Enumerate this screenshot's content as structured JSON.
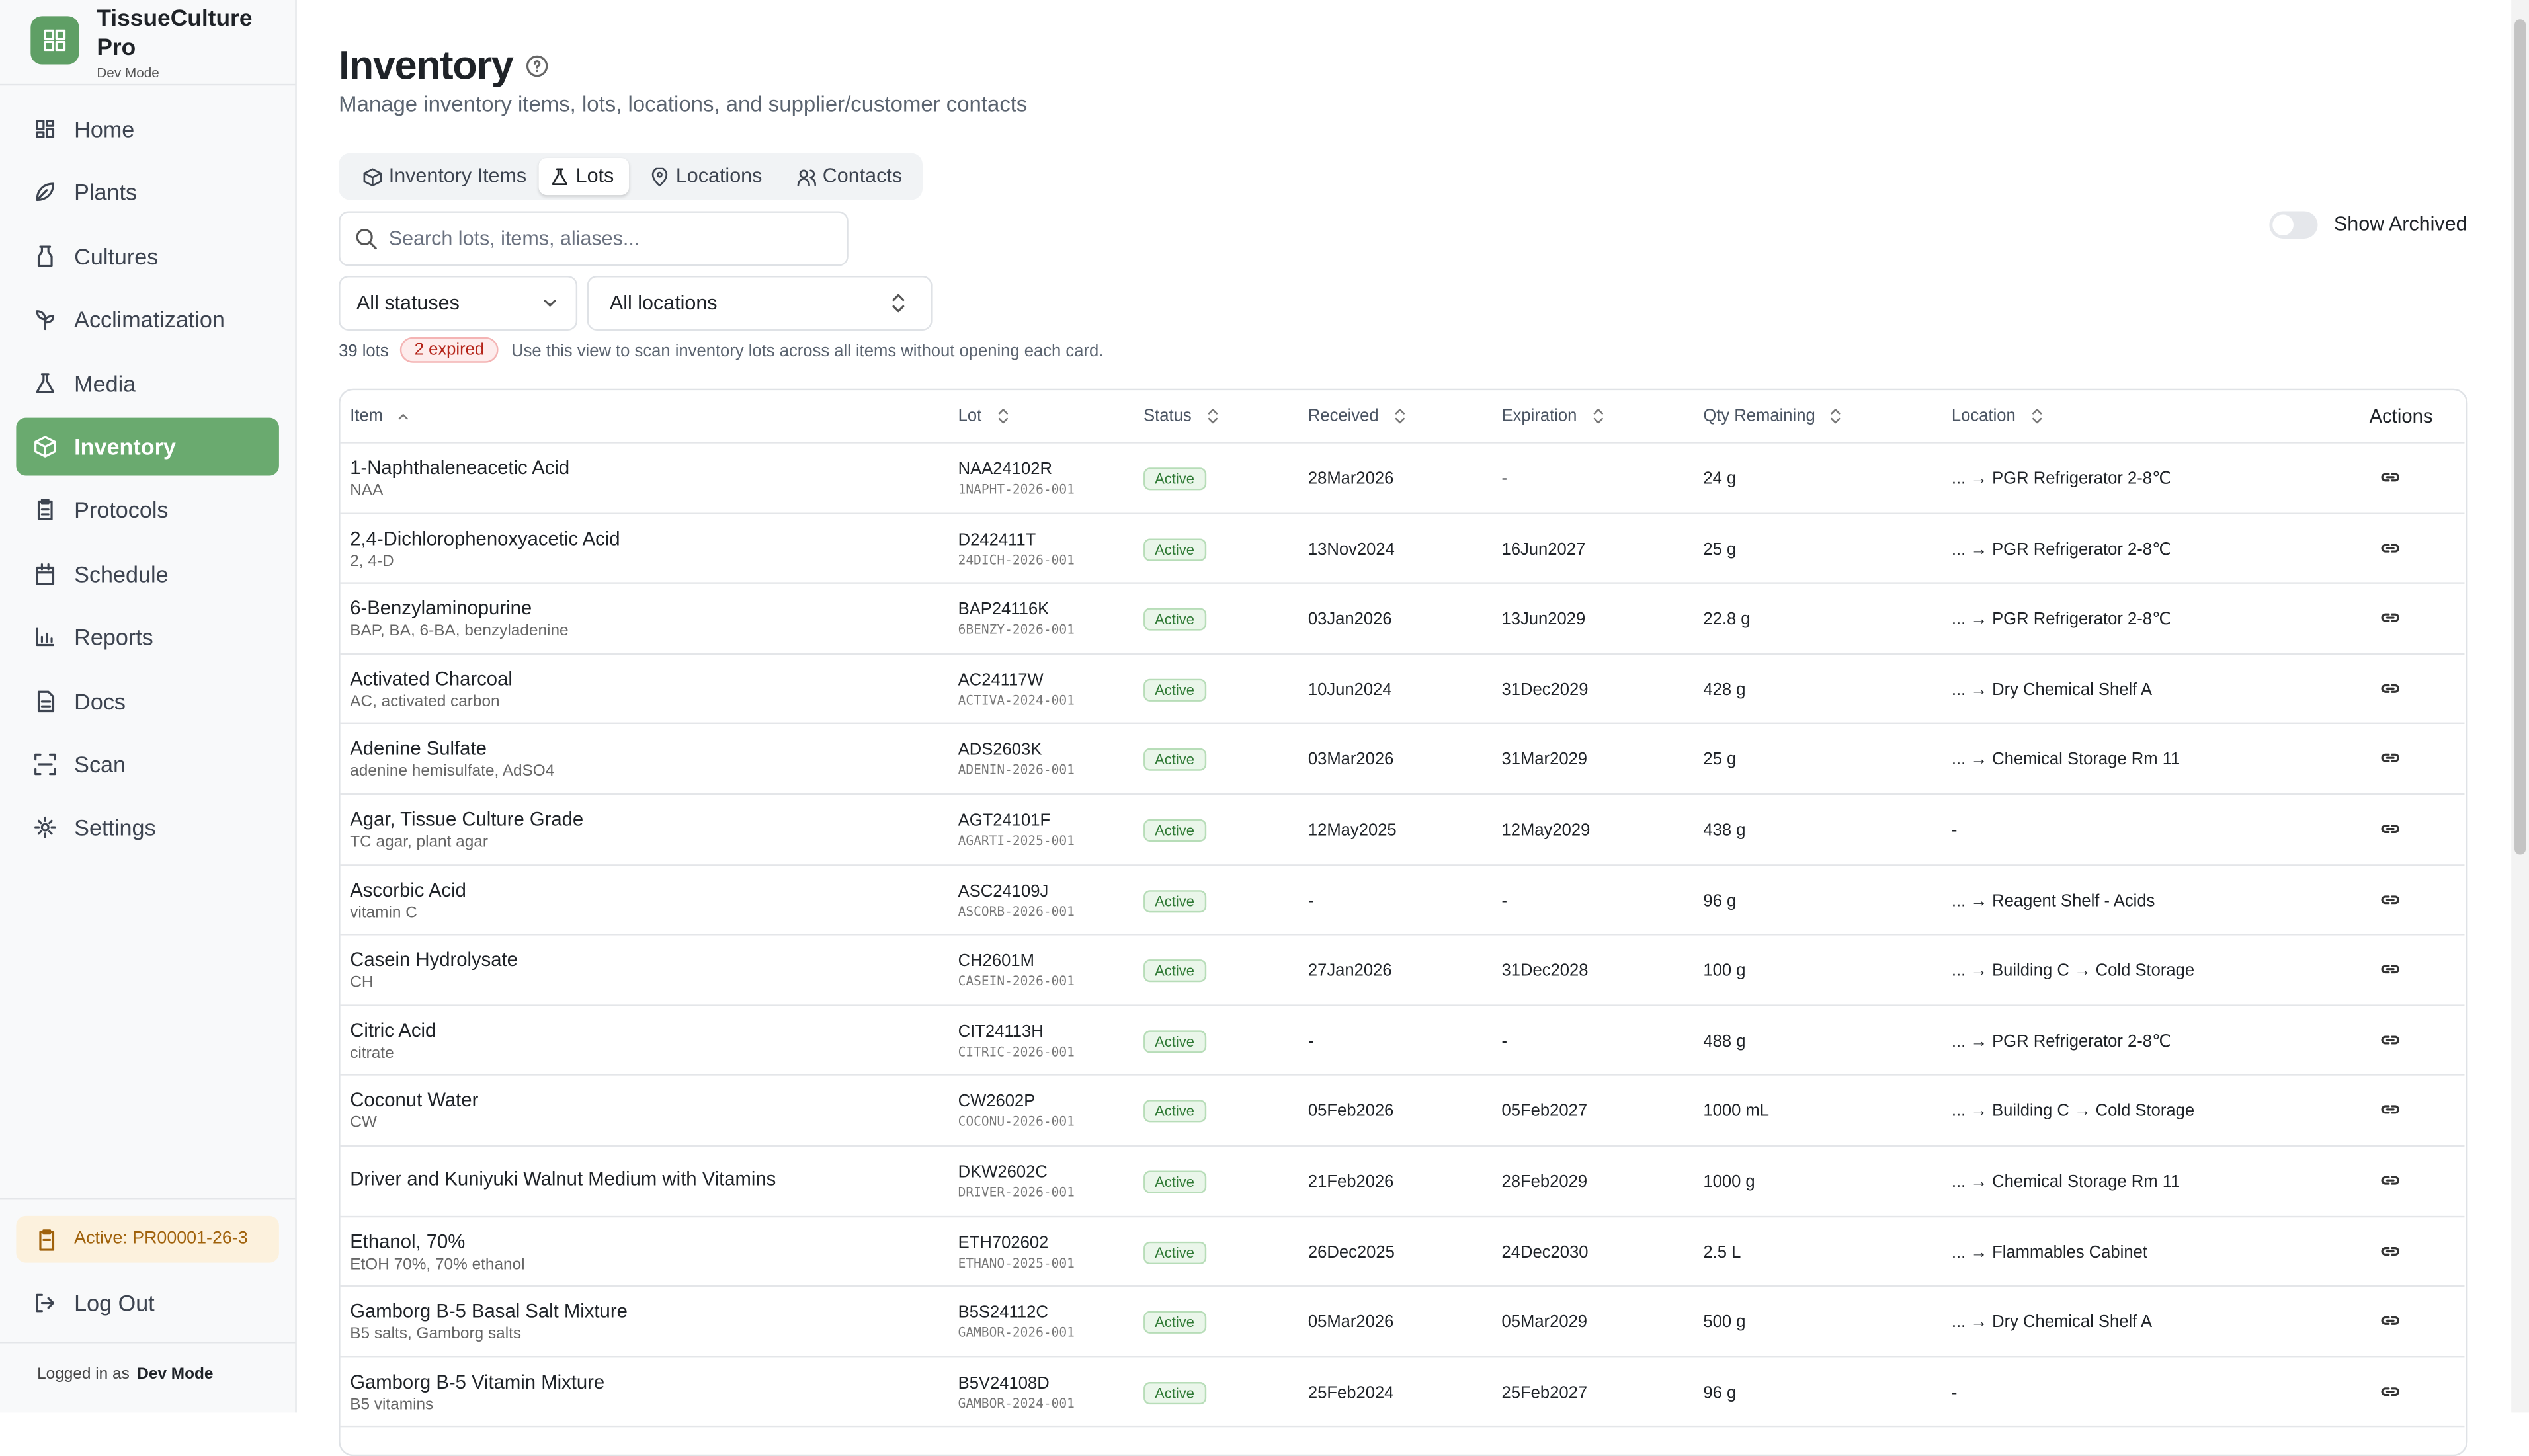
{
  "sidebar": {
    "brand": "TissueCulture Pro",
    "mode": "Dev Mode",
    "nav": [
      {
        "label": "Home"
      },
      {
        "label": "Plants"
      },
      {
        "label": "Cultures"
      },
      {
        "label": "Acclimatization"
      },
      {
        "label": "Media"
      },
      {
        "label": "Inventory",
        "active": true
      },
      {
        "label": "Protocols"
      },
      {
        "label": "Schedule"
      },
      {
        "label": "Reports"
      },
      {
        "label": "Docs"
      },
      {
        "label": "Scan"
      },
      {
        "label": "Settings"
      }
    ],
    "active_protocol": "Active: PR00001-26-3",
    "logout": "Log Out",
    "logged_in_prefix": "Logged in as",
    "logged_in_user": "Dev Mode"
  },
  "header": {
    "title": "Inventory",
    "subtitle": "Manage inventory items, lots, locations, and supplier/customer contacts"
  },
  "tabs": [
    {
      "label": "Inventory Items"
    },
    {
      "label": "Lots",
      "active": true
    },
    {
      "label": "Locations"
    },
    {
      "label": "Contacts"
    }
  ],
  "search_placeholder": "Search lots, items, aliases...",
  "show_archived": "Show Archived",
  "filters": {
    "status": "All statuses",
    "location": "All locations"
  },
  "summary": {
    "count": "39 lots",
    "expired": "2 expired",
    "hint": "Use this view to scan inventory lots across all items without opening each card."
  },
  "table": {
    "headers": [
      "Item",
      "Lot",
      "Status",
      "Received",
      "Expiration",
      "Qty Remaining",
      "Location",
      "Actions"
    ],
    "rows": [
      {
        "item": "1-Naphthaleneacetic Acid",
        "alias": "NAA",
        "lot": "NAA24102R",
        "code": "1NAPHT-2026-001",
        "status": "Active",
        "received": "28Mar2026",
        "expiration": "-",
        "qty": "24 g",
        "location": "... → PGR Refrigerator 2-8℃"
      },
      {
        "item": "2,4-Dichlorophenoxyacetic Acid",
        "alias": "2, 4-D",
        "lot": "D242411T",
        "code": "24DICH-2026-001",
        "status": "Active",
        "received": "13Nov2024",
        "expiration": "16Jun2027",
        "qty": "25 g",
        "location": "... → PGR Refrigerator 2-8℃"
      },
      {
        "item": "6-Benzylaminopurine",
        "alias": "BAP, BA, 6-BA, benzyladenine",
        "lot": "BAP24116K",
        "code": "6BENZY-2026-001",
        "status": "Active",
        "received": "03Jan2026",
        "expiration": "13Jun2029",
        "qty": "22.8 g",
        "location": "... → PGR Refrigerator 2-8℃"
      },
      {
        "item": "Activated Charcoal",
        "alias": "AC, activated carbon",
        "lot": "AC24117W",
        "code": "ACTIVA-2024-001",
        "status": "Active",
        "received": "10Jun2024",
        "expiration": "31Dec2029",
        "qty": "428 g",
        "location": "... → Dry Chemical Shelf A"
      },
      {
        "item": "Adenine Sulfate",
        "alias": "adenine hemisulfate, AdSO4",
        "lot": "ADS2603K",
        "code": "ADENIN-2026-001",
        "status": "Active",
        "received": "03Mar2026",
        "expiration": "31Mar2029",
        "qty": "25 g",
        "location": "... → Chemical Storage Rm 11"
      },
      {
        "item": "Agar, Tissue Culture Grade",
        "alias": "TC agar, plant agar",
        "lot": "AGT24101F",
        "code": "AGARTI-2025-001",
        "status": "Active",
        "received": "12May2025",
        "expiration": "12May2029",
        "qty": "438 g",
        "location": "-"
      },
      {
        "item": "Ascorbic Acid",
        "alias": "vitamin C",
        "lot": "ASC24109J",
        "code": "ASCORB-2026-001",
        "status": "Active",
        "received": "-",
        "expiration": "-",
        "qty": "96 g",
        "location": "... → Reagent Shelf - Acids"
      },
      {
        "item": "Casein Hydrolysate",
        "alias": "CH",
        "lot": "CH2601M",
        "code": "CASEIN-2026-001",
        "status": "Active",
        "received": "27Jan2026",
        "expiration": "31Dec2028",
        "qty": "100 g",
        "location": "... → Building C → Cold Storage"
      },
      {
        "item": "Citric Acid",
        "alias": "citrate",
        "lot": "CIT24113H",
        "code": "CITRIC-2026-001",
        "status": "Active",
        "received": "-",
        "expiration": "-",
        "qty": "488 g",
        "location": "... → PGR Refrigerator 2-8℃"
      },
      {
        "item": "Coconut Water",
        "alias": "CW",
        "lot": "CW2602P",
        "code": "COCONU-2026-001",
        "status": "Active",
        "received": "05Feb2026",
        "expiration": "05Feb2027",
        "qty": "1000 mL",
        "location": "... → Building C → Cold Storage"
      },
      {
        "item": "Driver and Kuniyuki Walnut Medium with Vitamins",
        "lot": "DKW2602C",
        "code": "DRIVER-2026-001",
        "status": "Active",
        "received": "21Feb2026",
        "expiration": "28Feb2029",
        "qty": "1000 g",
        "location": "... → Chemical Storage Rm 11"
      },
      {
        "item": "Ethanol, 70%",
        "alias": "EtOH 70%, 70% ethanol",
        "lot": "ETH702602",
        "code": "ETHANO-2025-001",
        "status": "Active",
        "received": "26Dec2025",
        "expiration": "24Dec2030",
        "qty": "2.5 L",
        "location": "... → Flammables Cabinet"
      },
      {
        "item": "Gamborg B-5 Basal Salt Mixture",
        "alias": "B5 salts, Gamborg salts",
        "lot": "B5S24112C",
        "code": "GAMBOR-2026-001",
        "status": "Active",
        "received": "05Mar2026",
        "expiration": "05Mar2029",
        "qty": "500 g",
        "location": "... → Dry Chemical Shelf A"
      },
      {
        "item": "Gamborg B-5 Vitamin Mixture",
        "alias": "B5 vitamins",
        "lot": "B5V24108D",
        "code": "GAMBOR-2024-001",
        "status": "Active",
        "received": "25Feb2024",
        "expiration": "25Feb2027",
        "qty": "96 g",
        "location": "-"
      }
    ]
  }
}
